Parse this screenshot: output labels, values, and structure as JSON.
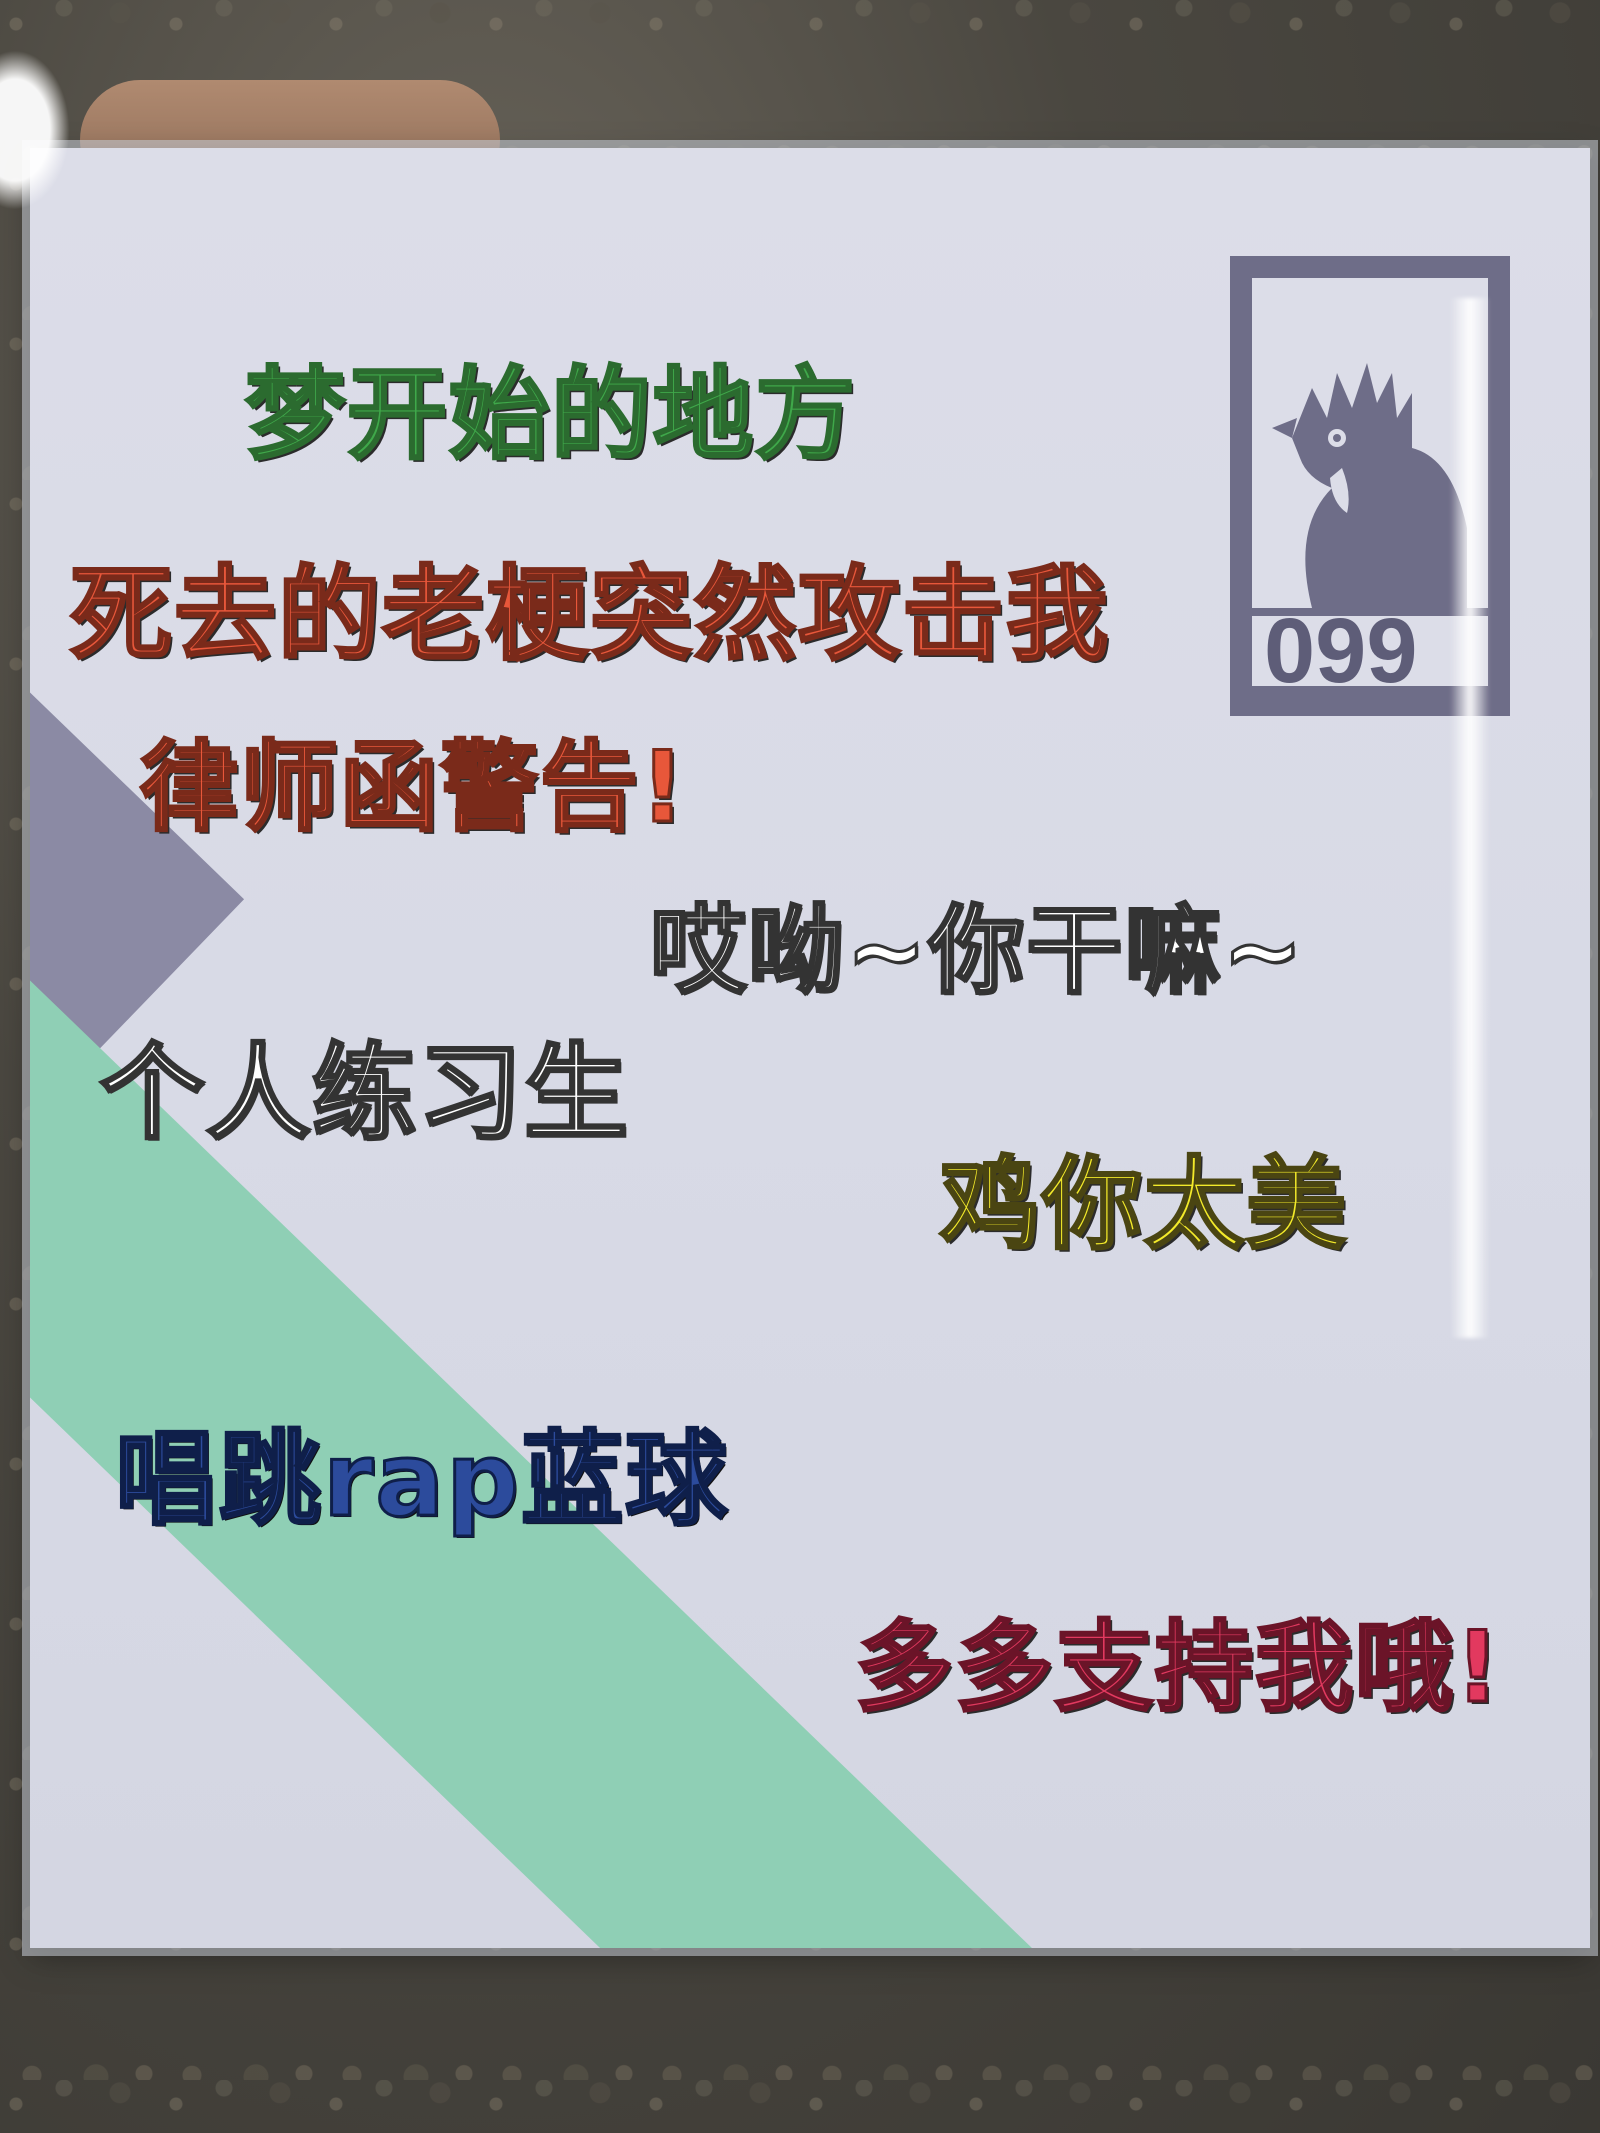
{
  "card": {
    "lines": [
      "梦开始的地方",
      "死去的老梗突然攻击我",
      "律师函警告!",
      "哎呦~你干嘛~",
      "个人练习生",
      "鸡你太美",
      "唱跳rap蓝球",
      "多多支持我哦!"
    ],
    "badge_number": "099"
  },
  "colors": {
    "green": "#3fa84a",
    "orange": "#e8573a",
    "white": "#ffffff",
    "yellow": "#f3ea2a",
    "blue": "#2c4b9c",
    "pink": "#e2395f",
    "teal_stripe": "#8fcfb5",
    "slate": "#6e6d88"
  },
  "icons": {
    "badge": "rooster-icon"
  }
}
